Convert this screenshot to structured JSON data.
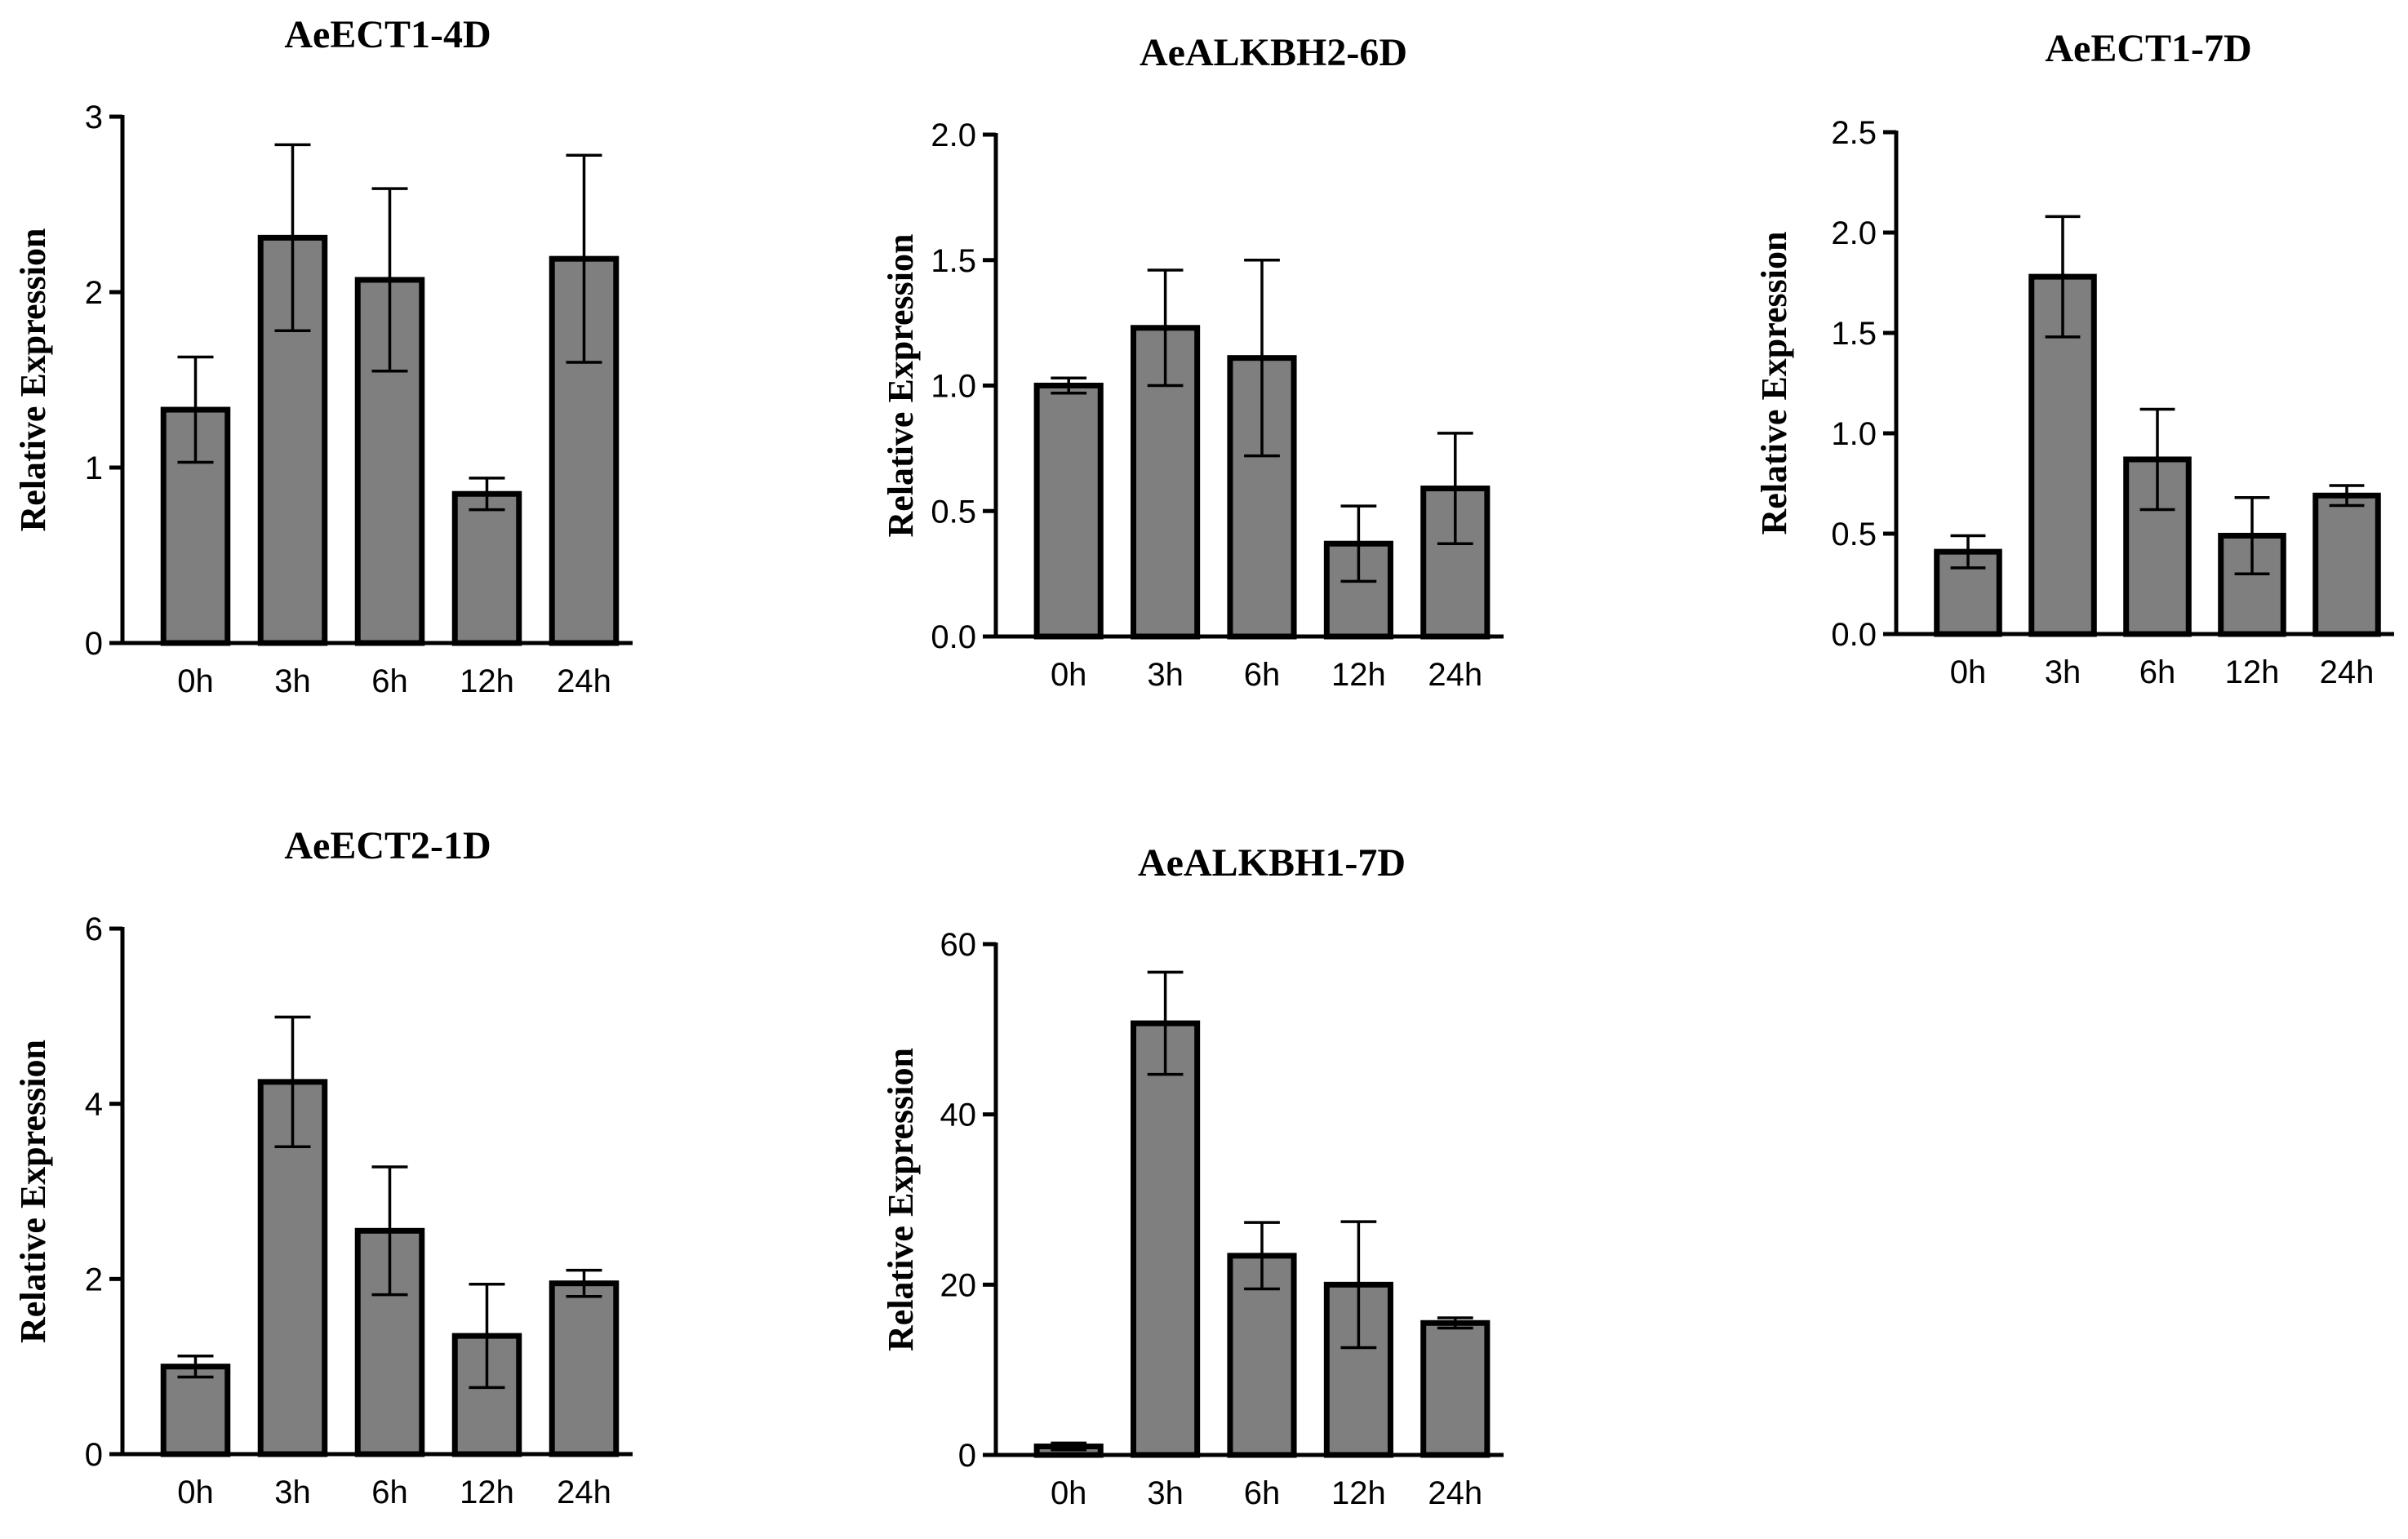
{
  "chart_data": [
    {
      "type": "bar",
      "title": "AeECT1-4D",
      "ylabel": "Relative Expression",
      "categories": [
        "0h",
        "3h",
        "6h",
        "12h",
        "24h"
      ],
      "values": [
        1.33,
        2.31,
        2.07,
        0.85,
        2.19
      ],
      "errors": [
        0.3,
        0.53,
        0.52,
        0.09,
        0.59
      ],
      "ylim": [
        0,
        3
      ],
      "yticks": [
        0,
        1,
        2,
        3
      ],
      "ytick_labels": [
        "0",
        "1",
        "2",
        "3"
      ]
    },
    {
      "type": "bar",
      "title": "AeALKBH2-6D",
      "ylabel": "Relative Expression",
      "categories": [
        "0h",
        "3h",
        "6h",
        "12h",
        "24h"
      ],
      "values": [
        1.0,
        1.23,
        1.11,
        0.37,
        0.59
      ],
      "errors": [
        0.03,
        0.23,
        0.39,
        0.15,
        0.22
      ],
      "ylim": [
        0,
        2
      ],
      "yticks": [
        0,
        0.5,
        1,
        1.5,
        2
      ],
      "ytick_labels": [
        "0.0",
        "0.5",
        "1.0",
        "1.5",
        "2.0"
      ]
    },
    {
      "type": "bar",
      "title": "AeECT1-7D",
      "ylabel": "Relative Expression",
      "categories": [
        "0h",
        "3h",
        "6h",
        "12h",
        "24h"
      ],
      "values": [
        0.41,
        1.78,
        0.87,
        0.49,
        0.69
      ],
      "errors": [
        0.08,
        0.3,
        0.25,
        0.19,
        0.05
      ],
      "ylim": [
        0,
        2.5
      ],
      "yticks": [
        0,
        0.5,
        1,
        1.5,
        2,
        2.5
      ],
      "ytick_labels": [
        "0.0",
        "0.5",
        "1.0",
        "1.5",
        "2.0",
        "2.5"
      ]
    },
    {
      "type": "bar",
      "title": "AeECT2-1D",
      "ylabel": "Relative Expression",
      "categories": [
        "0h",
        "3h",
        "6h",
        "12h",
        "24h"
      ],
      "values": [
        1.0,
        4.25,
        2.55,
        1.35,
        1.95
      ],
      "errors": [
        0.12,
        0.74,
        0.73,
        0.59,
        0.15
      ],
      "ylim": [
        0,
        6
      ],
      "yticks": [
        0,
        2,
        4,
        6
      ],
      "ytick_labels": [
        "0",
        "2",
        "4",
        "6"
      ]
    },
    {
      "type": "bar",
      "title": "AeALKBH1-7D",
      "ylabel": "Relative Expression",
      "categories": [
        "0h",
        "3h",
        "6h",
        "12h",
        "24h"
      ],
      "values": [
        1.0,
        50.7,
        23.4,
        20.0,
        15.5
      ],
      "errors": [
        0.4,
        6.0,
        3.9,
        7.4,
        0.6
      ],
      "ylim": [
        0,
        60
      ],
      "yticks": [
        0,
        20,
        40,
        60
      ],
      "ytick_labels": [
        "0",
        "20",
        "40",
        "60"
      ]
    }
  ]
}
